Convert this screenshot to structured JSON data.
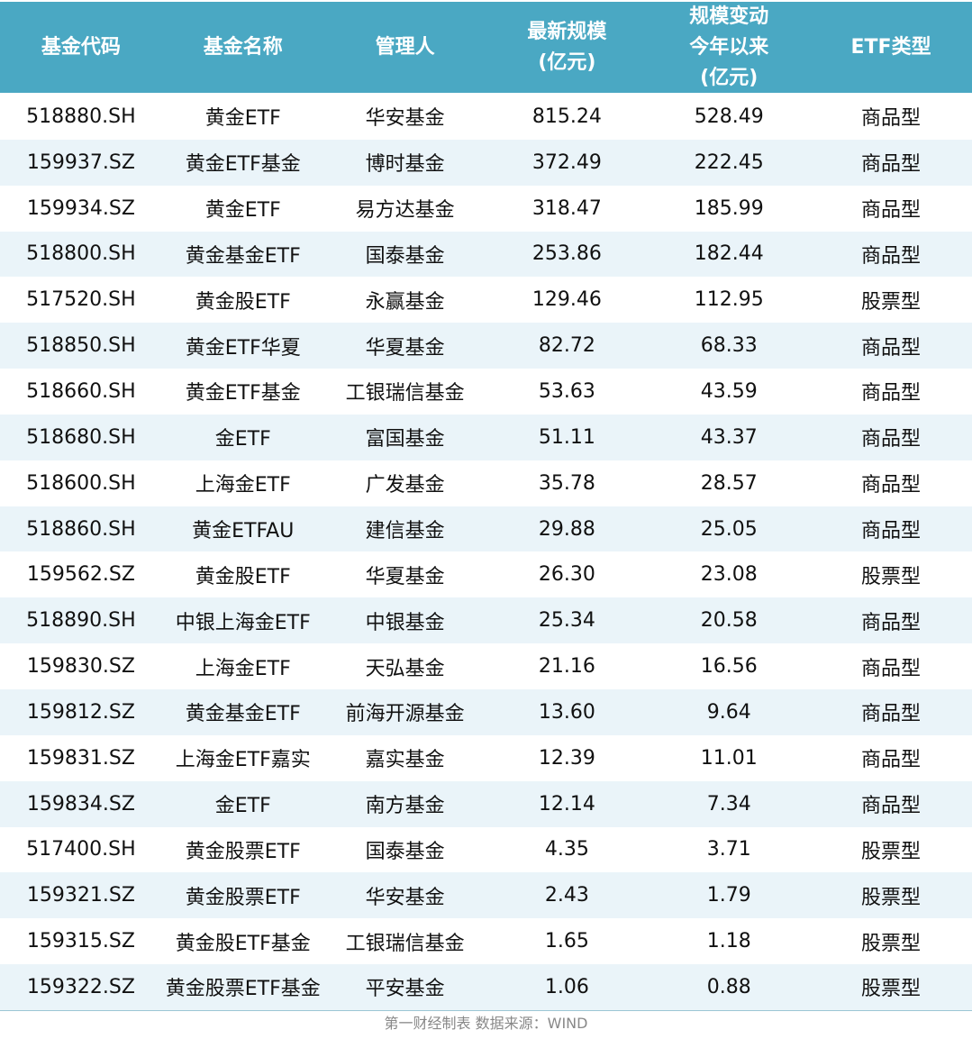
{
  "table": {
    "headers": [
      "基金代码",
      "基金名称",
      "管理人",
      "最新规模\n(亿元)",
      "规模变动\n今年以来\n(亿元)",
      "ETF类型"
    ],
    "rows": [
      [
        "518880.SH",
        "黄金ETF",
        "华安基金",
        "815.24",
        "528.49",
        "商品型"
      ],
      [
        "159937.SZ",
        "黄金ETF基金",
        "博时基金",
        "372.49",
        "222.45",
        "商品型"
      ],
      [
        "159934.SZ",
        "黄金ETF",
        "易方达基金",
        "318.47",
        "185.99",
        "商品型"
      ],
      [
        "518800.SH",
        "黄金基金ETF",
        "国泰基金",
        "253.86",
        "182.44",
        "商品型"
      ],
      [
        "517520.SH",
        "黄金股ETF",
        "永赢基金",
        "129.46",
        "112.95",
        "股票型"
      ],
      [
        "518850.SH",
        "黄金ETF华夏",
        "华夏基金",
        "82.72",
        "68.33",
        "商品型"
      ],
      [
        "518660.SH",
        "黄金ETF基金",
        "工银瑞信基金",
        "53.63",
        "43.59",
        "商品型"
      ],
      [
        "518680.SH",
        "金ETF",
        "富国基金",
        "51.11",
        "43.37",
        "商品型"
      ],
      [
        "518600.SH",
        "上海金ETF",
        "广发基金",
        "35.78",
        "28.57",
        "商品型"
      ],
      [
        "518860.SH",
        "黄金ETFAU",
        "建信基金",
        "29.88",
        "25.05",
        "商品型"
      ],
      [
        "159562.SZ",
        "黄金股ETF",
        "华夏基金",
        "26.30",
        "23.08",
        "股票型"
      ],
      [
        "518890.SH",
        "中银上海金ETF",
        "中银基金",
        "25.34",
        "20.58",
        "商品型"
      ],
      [
        "159830.SZ",
        "上海金ETF",
        "天弘基金",
        "21.16",
        "16.56",
        "商品型"
      ],
      [
        "159812.SZ",
        "黄金基金ETF",
        "前海开源基金",
        "13.60",
        "9.64",
        "商品型"
      ],
      [
        "159831.SZ",
        "上海金ETF嘉实",
        "嘉实基金",
        "12.39",
        "11.01",
        "商品型"
      ],
      [
        "159834.SZ",
        "金ETF",
        "南方基金",
        "12.14",
        "7.34",
        "商品型"
      ],
      [
        "517400.SH",
        "黄金股票ETF",
        "国泰基金",
        "4.35",
        "3.71",
        "股票型"
      ],
      [
        "159321.SZ",
        "黄金股票ETF",
        "华安基金",
        "2.43",
        "1.79",
        "股票型"
      ],
      [
        "159315.SZ",
        "黄金股ETF基金",
        "工银瑞信基金",
        "1.65",
        "1.18",
        "股票型"
      ],
      [
        "159322.SZ",
        "黄金股票ETF基金",
        "平安基金",
        "1.06",
        "0.88",
        "股票型"
      ]
    ]
  },
  "footer": "第一财经制表 数据来源：WIND",
  "colors": {
    "header_bg": "#4aa8c3",
    "stripe": "#eaf4f9"
  }
}
